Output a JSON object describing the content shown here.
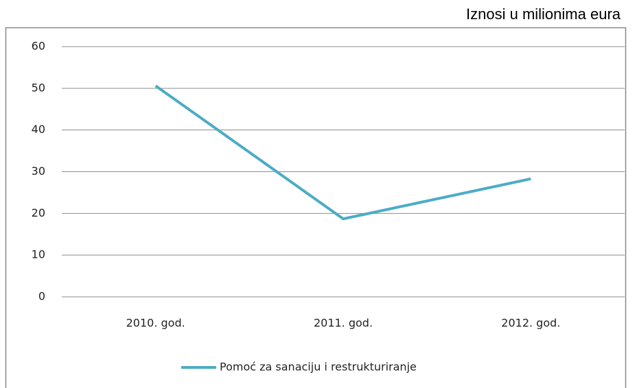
{
  "chart_data": {
    "type": "line",
    "subtitle": "Iznosi u milionima eura",
    "categories": [
      "2010. god.",
      "2011. god.",
      "2012. god."
    ],
    "series": [
      {
        "name": "Pomoć za sanaciju i restrukturiranje",
        "color": "#4bacc6",
        "values": [
          50.6,
          18.7,
          28.3
        ]
      }
    ],
    "ylim": [
      0,
      60
    ],
    "yticks": [
      0,
      10,
      20,
      30,
      40,
      50,
      60
    ],
    "grid": true,
    "legend": "bottom"
  }
}
